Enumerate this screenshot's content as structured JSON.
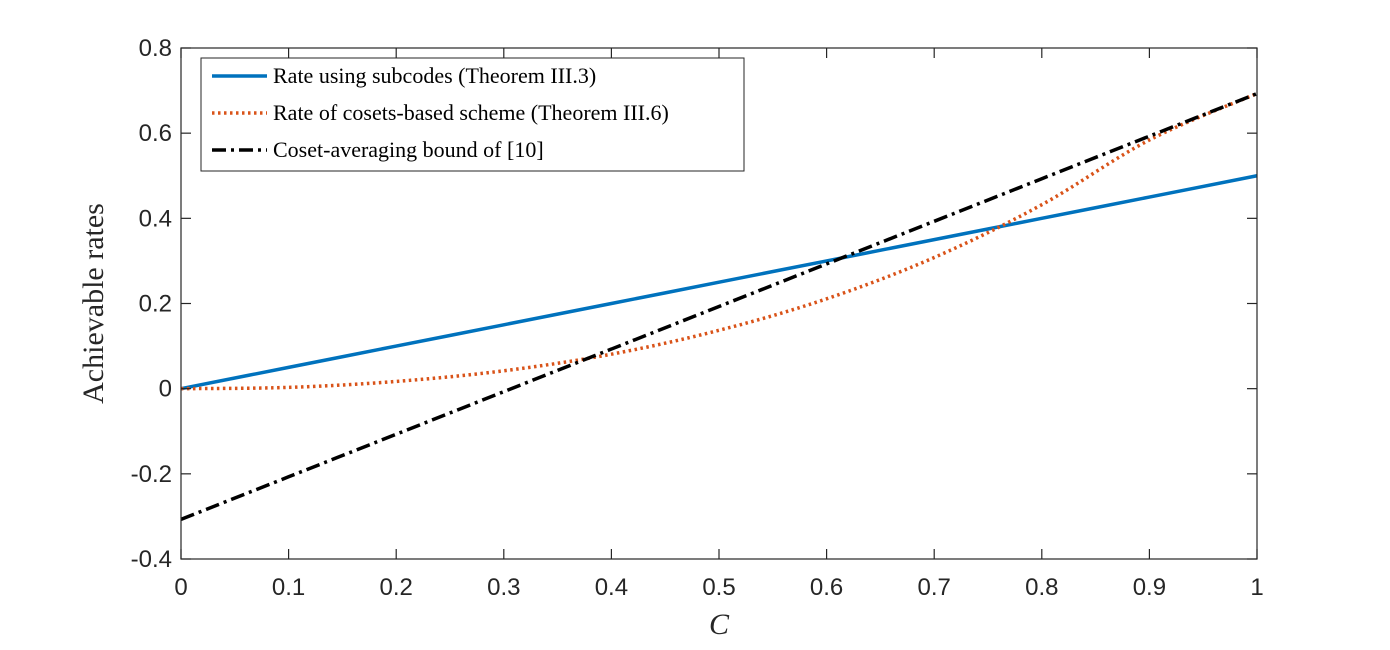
{
  "chart_data": {
    "type": "line",
    "title": "",
    "xlabel": "C",
    "ylabel": "Achievable rates",
    "xlim": [
      0,
      1
    ],
    "ylim": [
      -0.4,
      0.8
    ],
    "x_ticks": [
      0,
      0.1,
      0.2,
      0.3,
      0.4,
      0.5,
      0.6,
      0.7,
      0.8,
      0.9,
      1
    ],
    "x_tick_labels": [
      "0",
      "0.1",
      "0.2",
      "0.3",
      "0.4",
      "0.5",
      "0.6",
      "0.7",
      "0.8",
      "0.9",
      "1"
    ],
    "y_ticks": [
      -0.4,
      -0.2,
      0,
      0.2,
      0.4,
      0.6,
      0.8
    ],
    "y_tick_labels": [
      "-0.4",
      "-0.2",
      "0",
      "0.2",
      "0.4",
      "0.6",
      "0.8"
    ],
    "grid": false,
    "legend_position": "top-left",
    "series": [
      {
        "name": "Rate using subcodes (Theorem III.3)",
        "color": "#0072BD",
        "style": "solid",
        "x": [
          0,
          0.1,
          0.2,
          0.3,
          0.4,
          0.5,
          0.6,
          0.7,
          0.8,
          0.9,
          1
        ],
        "y": [
          0,
          0.05,
          0.1,
          0.15,
          0.2,
          0.25,
          0.3,
          0.35,
          0.4,
          0.45,
          0.5
        ]
      },
      {
        "name": "Rate of cosets-based scheme (Theorem III.6)",
        "color": "#D95319",
        "style": "dotted",
        "x": [
          0,
          0.1,
          0.2,
          0.3,
          0.4,
          0.5,
          0.6,
          0.7,
          0.8,
          0.9,
          1
        ],
        "y": [
          0,
          0.003,
          0.017,
          0.042,
          0.081,
          0.137,
          0.211,
          0.308,
          0.432,
          0.584,
          0.693
        ]
      },
      {
        "name": "Coset-averaging bound of [10]",
        "color": "#000000",
        "style": "dashdot",
        "x": [
          0,
          0.1,
          0.2,
          0.3,
          0.4,
          0.5,
          0.6,
          0.7,
          0.8,
          0.9,
          1
        ],
        "y": [
          -0.307,
          -0.207,
          -0.107,
          -0.007,
          0.093,
          0.193,
          0.293,
          0.393,
          0.493,
          0.593,
          0.693
        ]
      }
    ]
  }
}
